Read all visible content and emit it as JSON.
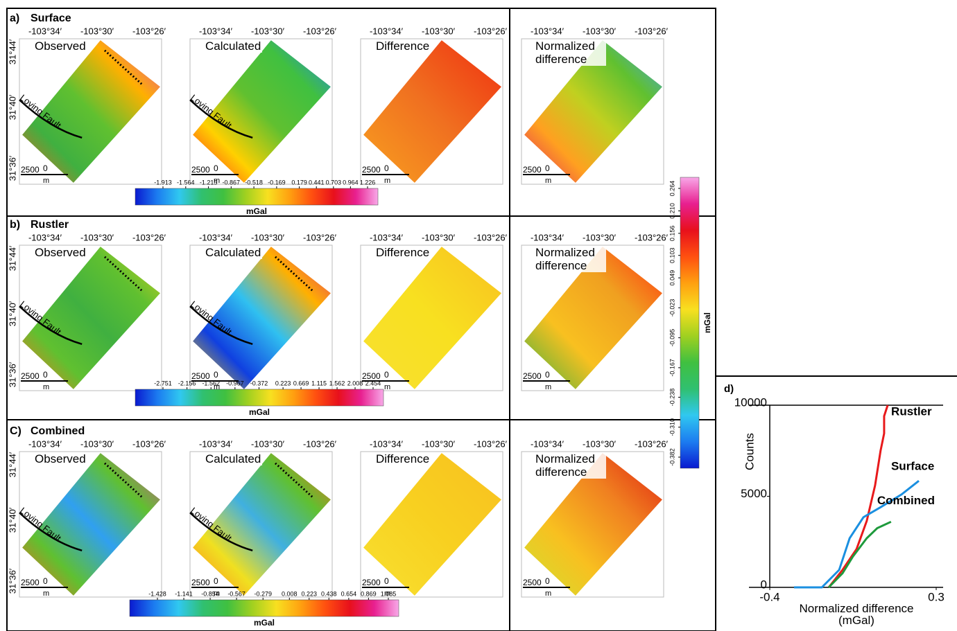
{
  "rows": [
    {
      "label": "a)",
      "title": "Surface",
      "panels": [
        "Observed",
        "Calculated",
        "Difference",
        "Normalized difference"
      ],
      "colorbar": {
        "ticks": [
          -1.913,
          -1.564,
          -1.215,
          -0.867,
          -0.518,
          -0.169,
          0.179,
          0.441,
          0.703,
          0.964,
          1.226
        ],
        "unit": "mGal"
      }
    },
    {
      "label": "b)",
      "title": "Rustler",
      "panels": [
        "Observed",
        "Calculated",
        "Difference",
        "Normalized difference"
      ],
      "colorbar": {
        "ticks": [
          -2.751,
          -2.156,
          -1.562,
          -0.967,
          -0.372,
          0.223,
          0.669,
          1.115,
          1.562,
          2.008,
          2.454
        ],
        "unit": "mGal"
      }
    },
    {
      "label": "C)",
      "title": "Combined",
      "panels": [
        "Observed",
        "Calculated",
        "Difference",
        "Normalized difference"
      ],
      "colorbar": {
        "ticks": [
          -1.428,
          -1.141,
          -0.854,
          -0.567,
          -0.279,
          0.008,
          0.223,
          0.438,
          0.654,
          0.869,
          1.085
        ],
        "unit": "mGal"
      }
    }
  ],
  "lon_labels": [
    "-103°34′",
    "-103°30′",
    "-103°26′"
  ],
  "lat_labels": [
    "31°44′",
    "31°40′",
    "31°36′"
  ],
  "fault_label": "Loving Fault",
  "scale": {
    "length": 2500,
    "zero": 0,
    "unit": "m"
  },
  "normalized_colorbar": {
    "ticks": [
      -0.382,
      {
        "value": -0.31,
        "label": "-0.310"
      },
      -0.238,
      -0.167,
      -0.095,
      -0.023,
      0.049,
      0.103,
      0.156,
      {
        "value": 0.21,
        "label": "0.210"
      },
      0.264
    ],
    "unit": "mGal"
  },
  "chart_data": {
    "type": "line",
    "panel_label": "d)",
    "x_label": "Normalized difference (mGal)",
    "y_label": "Counts",
    "xlim": [
      -0.4,
      0.3
    ],
    "xticks": [
      -0.4,
      0.3
    ],
    "ylim": [
      0,
      10000
    ],
    "yticks": [
      0,
      5000,
      10000
    ],
    "series": [
      {
        "name": "Rustler",
        "color": "#e8191b",
        "x": [
          -0.152,
          -0.094,
          -0.035,
          0.008,
          0.043,
          0.066,
          0.081,
          0.081,
          0.096
        ],
        "values": [
          0,
          960,
          2100,
          3650,
          5600,
          7500,
          8450,
          9400,
          10000
        ]
      },
      {
        "name": "Surface",
        "color": "#1a8fe0",
        "x": [
          -0.298,
          -0.181,
          -0.108,
          -0.064,
          -0.006,
          0.066,
          0.154,
          0.227
        ],
        "values": [
          0,
          0,
          960,
          2700,
          3850,
          4400,
          5100,
          5850
        ]
      },
      {
        "name": "Combined",
        "color": "#1e9a3c",
        "x": [
          -0.152,
          -0.094,
          -0.05,
          0.008,
          0.052,
          0.11
        ],
        "values": [
          0,
          770,
          1700,
          2700,
          3250,
          3600
        ]
      }
    ]
  }
}
